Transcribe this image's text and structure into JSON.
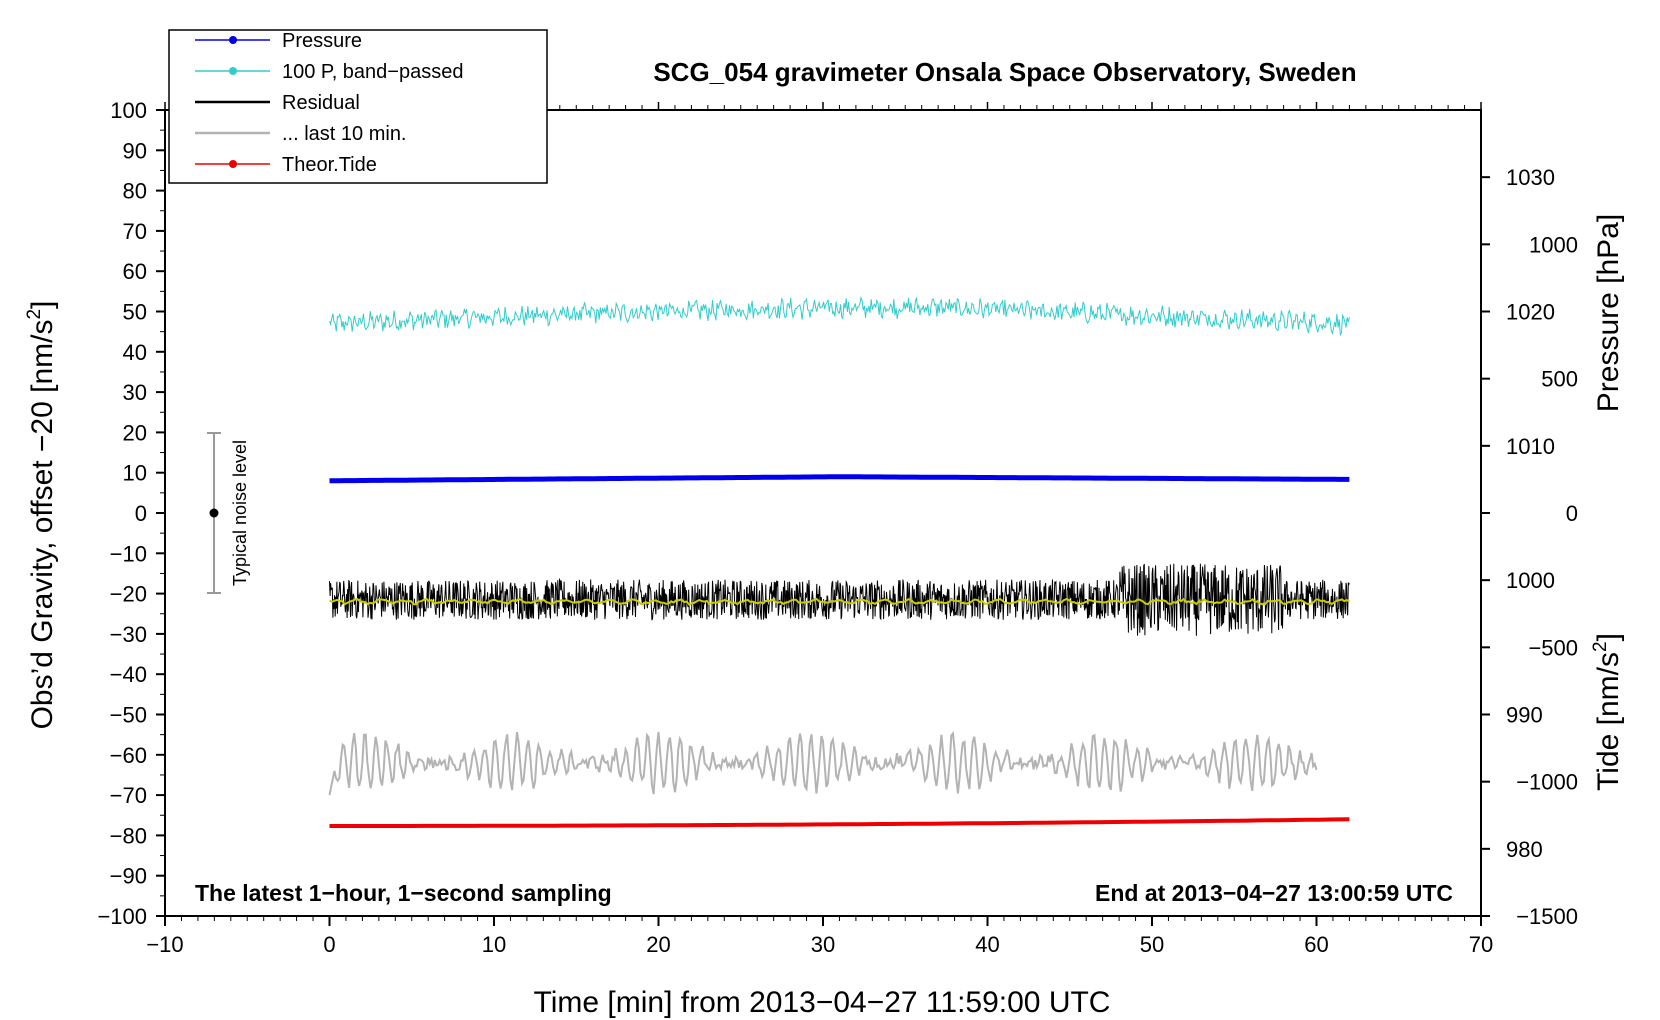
{
  "chart_data": {
    "type": "line",
    "title": "SCG_054 gravimeter Onsala Space Observatory, Sweden",
    "xlabel": "Time [min] from 2013−04−27 11:59:00 UTC",
    "ylabel_left_prefix": "Obs’d Gravity, offset −20 [nm/s",
    "ylabel_right_top": "Pressure [hPa]",
    "ylabel_right_bottom_prefix": "Tide [nm/s",
    "superscript": "2",
    "unit_close": "]",
    "xlim": [
      -10,
      70
    ],
    "ylim": [
      -100,
      100
    ],
    "pressure_lim": [
      975,
      1035
    ],
    "tide_lim": [
      -1500,
      1500
    ],
    "x_ticks": [
      "−10",
      "0",
      "10",
      "20",
      "30",
      "40",
      "50",
      "60",
      "70"
    ],
    "x_tick_values": [
      -10,
      0,
      10,
      20,
      30,
      40,
      50,
      60,
      70
    ],
    "y_ticks": [
      "100",
      "90",
      "80",
      "70",
      "60",
      "50",
      "40",
      "30",
      "20",
      "10",
      "0",
      "−10",
      "−20",
      "−30",
      "−40",
      "−50",
      "−60",
      "−70",
      "−80",
      "−90",
      "−100"
    ],
    "y_tick_values": [
      100,
      90,
      80,
      70,
      60,
      50,
      40,
      30,
      20,
      10,
      0,
      -10,
      -20,
      -30,
      -40,
      -50,
      -60,
      -70,
      -80,
      -90,
      -100
    ],
    "pressure_ticks": [
      "1030",
      "1020",
      "1010",
      "1000",
      "990",
      "980"
    ],
    "pressure_tick_values": [
      1030,
      1020,
      1010,
      1000,
      990,
      980
    ],
    "tide_ticks": [
      "1000",
      "500",
      "0",
      "−500",
      "−1000",
      "−1500"
    ],
    "tide_tick_values": [
      1000,
      500,
      0,
      -500,
      -1000,
      -1500
    ],
    "legend": [
      {
        "label": "Pressure",
        "color": "#0000ee",
        "marker": true
      },
      {
        "label": "100 P, band−passed",
        "color": "#33cccc",
        "marker": true
      },
      {
        "label": "Residual",
        "color": "#000000",
        "marker": false
      },
      {
        "label": "... last 10 min.",
        "color": "#b3b3b3",
        "marker": false
      },
      {
        "label": "Theor.Tide",
        "color": "#ee0000",
        "marker": true
      }
    ],
    "series": [
      {
        "name": "Pressure",
        "color": "#0000ee",
        "x_range": [
          0,
          62
        ],
        "approx_level_hPa": [
          1007.4,
          1007.7,
          1007.5
        ]
      },
      {
        "name": "100 P, band−passed",
        "color": "#33cccc",
        "x_range": [
          0,
          62
        ],
        "approx_level_nm_s2": [
          47,
          51,
          47
        ],
        "noise_amplitude": 3
      },
      {
        "name": "Residual",
        "color": "#000000",
        "x_range": [
          0,
          62
        ],
        "approx_level_nm_s2": -21.5,
        "noise_amplitude": 5
      },
      {
        "name": "Residual smoothed",
        "color": "#cccc00",
        "x_range": [
          0,
          62
        ],
        "approx_level_nm_s2": -22
      },
      {
        "name": "... last 10 min.",
        "color": "#b3b3b3",
        "x_range": [
          0,
          60
        ],
        "approx_level_nm_s2": -62,
        "noise_amplitude": 6
      },
      {
        "name": "Theor.Tide",
        "color": "#ee0000",
        "x_range": [
          0,
          62
        ],
        "start_nm_s2": -1165,
        "end_nm_s2": -1140
      }
    ],
    "noise_bar": {
      "label": "Typical noise level",
      "x": -7,
      "center": 0,
      "low": -20,
      "high": 20
    },
    "note_left": "The latest 1−hour, 1−second sampling",
    "note_right": "End at 2013−04−27 13:00:59 UTC"
  }
}
